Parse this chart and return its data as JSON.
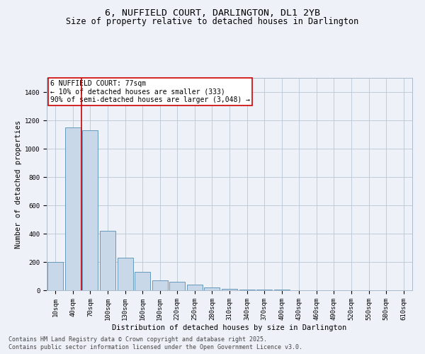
{
  "title1": "6, NUFFIELD COURT, DARLINGTON, DL1 2YB",
  "title2": "Size of property relative to detached houses in Darlington",
  "xlabel": "Distribution of detached houses by size in Darlington",
  "ylabel": "Number of detached properties",
  "categories": [
    "10sqm",
    "40sqm",
    "70sqm",
    "100sqm",
    "130sqm",
    "160sqm",
    "190sqm",
    "220sqm",
    "250sqm",
    "280sqm",
    "310sqm",
    "340sqm",
    "370sqm",
    "400sqm",
    "430sqm",
    "460sqm",
    "490sqm",
    "520sqm",
    "550sqm",
    "580sqm",
    "610sqm"
  ],
  "values": [
    200,
    1150,
    1130,
    420,
    230,
    130,
    70,
    60,
    40,
    20,
    10,
    5,
    5,
    4,
    0,
    0,
    0,
    1,
    0,
    0,
    0
  ],
  "bar_color": "#c8d8e8",
  "bar_edge_color": "#6699bb",
  "grid_color": "#c0ccd8",
  "bg_color": "#eef2f8",
  "annotation_box_text": "6 NUFFIELD COURT: 77sqm\n← 10% of detached houses are smaller (333)\n90% of semi-detached houses are larger (3,048) →",
  "annotation_box_color": "white",
  "annotation_box_edge_color": "#cc0000",
  "vline_x": 1.5,
  "vline_color": "#cc0000",
  "ylim_max": 1500,
  "yticks": [
    0,
    200,
    400,
    600,
    800,
    1000,
    1200,
    1400
  ],
  "footer1": "Contains HM Land Registry data © Crown copyright and database right 2025.",
  "footer2": "Contains public sector information licensed under the Open Government Licence v3.0.",
  "title_fontsize": 9.5,
  "subtitle_fontsize": 8.5,
  "axis_label_fontsize": 7.5,
  "tick_fontsize": 6.5,
  "annotation_fontsize": 7,
  "footer_fontsize": 6
}
